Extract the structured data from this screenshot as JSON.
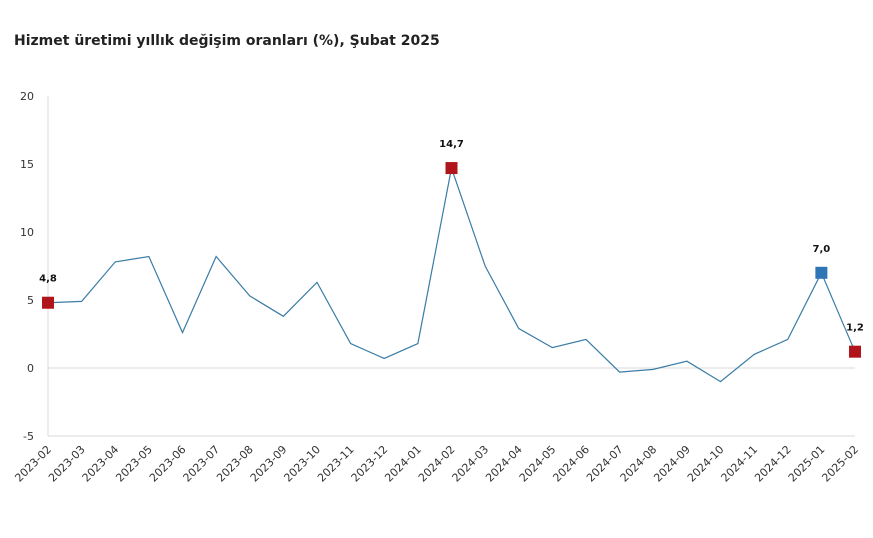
{
  "chart_data": {
    "type": "line",
    "title": "Hizmet üretimi yıllık değişim oranları (%), Şubat 2025",
    "xlabel": "",
    "ylabel": "",
    "ylim": [
      -5,
      20
    ],
    "yticks": [
      20,
      15,
      10,
      5,
      0,
      -5
    ],
    "ytick_labels": [
      "20",
      "15",
      "10",
      "5",
      "0",
      "-5"
    ],
    "grid": false,
    "categories": [
      "2023-02",
      "2023-03",
      "2023-04",
      "2023-05",
      "2023-06",
      "2023-07",
      "2023-08",
      "2023-09",
      "2023-10",
      "2023-11",
      "2023-12",
      "2024-01",
      "2024-02",
      "2024-03",
      "2024-04",
      "2024-05",
      "2024-06",
      "2024-07",
      "2024-08",
      "2024-09",
      "2024-10",
      "2024-11",
      "2024-12",
      "2025-01",
      "2025-02"
    ],
    "series": [
      {
        "name": "Hizmet üretimi",
        "color": "#3a7ca5",
        "values": [
          4.8,
          4.9,
          7.8,
          8.2,
          2.6,
          8.2,
          5.3,
          3.8,
          6.3,
          1.8,
          0.7,
          1.8,
          14.7,
          7.5,
          2.9,
          1.5,
          2.1,
          -0.3,
          -0.1,
          0.5,
          -1.0,
          1.0,
          2.1,
          7.0,
          1.2
        ]
      }
    ],
    "markers": [
      {
        "index": 0,
        "label": "4,8",
        "color": "#b0151c"
      },
      {
        "index": 12,
        "label": "14,7",
        "color": "#b0151c"
      },
      {
        "index": 23,
        "label": "7,0",
        "color": "#2e75b6"
      },
      {
        "index": 24,
        "label": "1,2",
        "color": "#b0151c"
      }
    ]
  }
}
